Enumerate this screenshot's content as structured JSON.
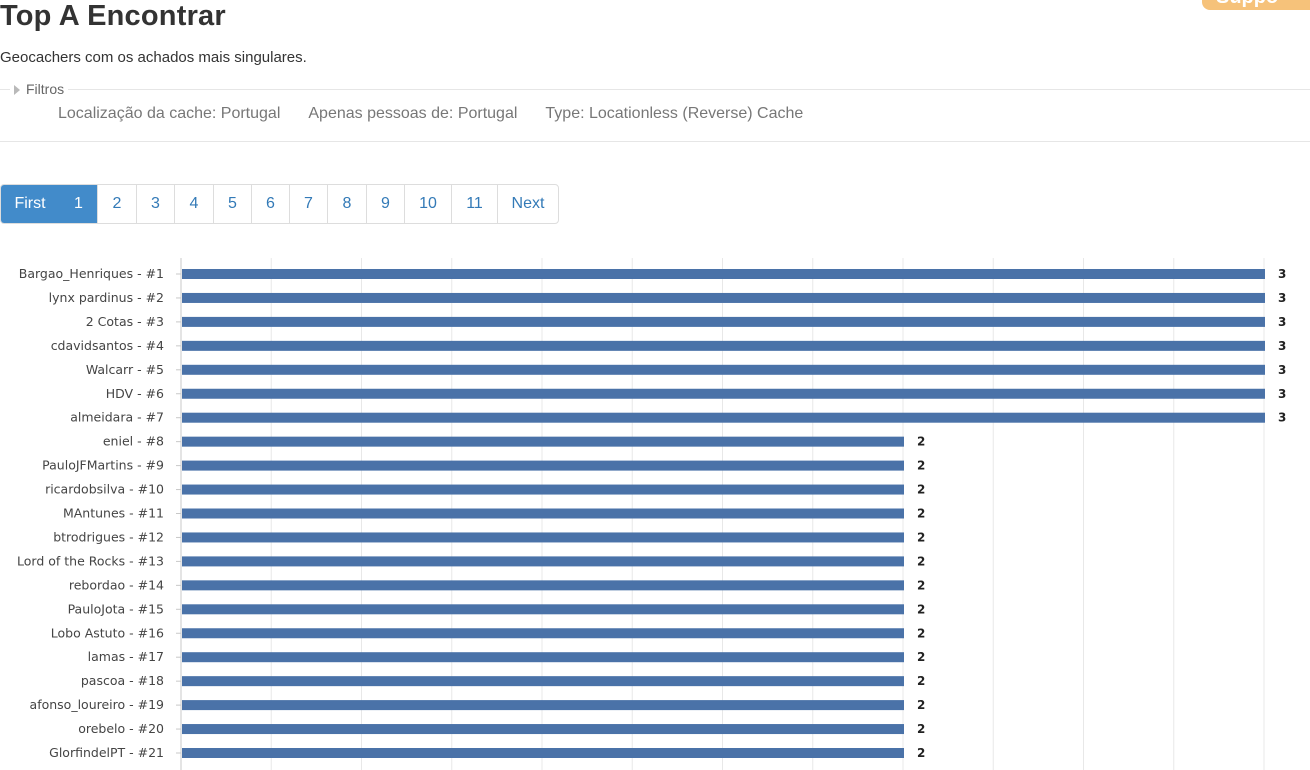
{
  "header": {
    "title": "Top A Encontrar",
    "subtitle": "Geocachers com os achados mais singulares.",
    "support_label": "Suppo"
  },
  "filters": {
    "legend": "Filtros",
    "items": [
      "Localização da cache: Portugal",
      "Apenas pessoas de: Portugal",
      "Type: Locationless (Reverse) Cache"
    ]
  },
  "pagination": {
    "items": [
      {
        "label": "First",
        "active": true
      },
      {
        "label": "1",
        "active": true
      },
      {
        "label": "2",
        "active": false
      },
      {
        "label": "3",
        "active": false
      },
      {
        "label": "4",
        "active": false
      },
      {
        "label": "5",
        "active": false
      },
      {
        "label": "6",
        "active": false
      },
      {
        "label": "7",
        "active": false
      },
      {
        "label": "8",
        "active": false
      },
      {
        "label": "9",
        "active": false
      },
      {
        "label": "10",
        "active": false
      },
      {
        "label": "11",
        "active": false
      },
      {
        "label": "Next",
        "active": false
      }
    ]
  },
  "colors": {
    "bar": "#4a72a8",
    "active_page": "#428bca",
    "link": "#337ab7"
  },
  "chart_data": {
    "type": "bar",
    "orientation": "horizontal",
    "categories": [
      "Bargao_Henriques - #1",
      "lynx pardinus - #2",
      "2 Cotas - #3",
      "cdavidsantos - #4",
      "Walcarr - #5",
      "HDV - #6",
      "almeidara - #7",
      "eniel - #8",
      "PauloJFMartins - #9",
      "ricardobsilva - #10",
      "MAntunes - #11",
      "btrodrigues - #12",
      "Lord of the Rocks - #13",
      "rebordao - #14",
      "PauloJota - #15",
      "Lobo Astuto - #16",
      "lamas - #17",
      "pascoa - #18",
      "afonso_loureiro - #19",
      "orebelo - #20",
      "GlorfindelPT - #21"
    ],
    "values": [
      3,
      3,
      3,
      3,
      3,
      3,
      3,
      2,
      2,
      2,
      2,
      2,
      2,
      2,
      2,
      2,
      2,
      2,
      2,
      2,
      2
    ],
    "xlim": [
      0,
      3
    ],
    "grid": true,
    "data_labels": true
  }
}
